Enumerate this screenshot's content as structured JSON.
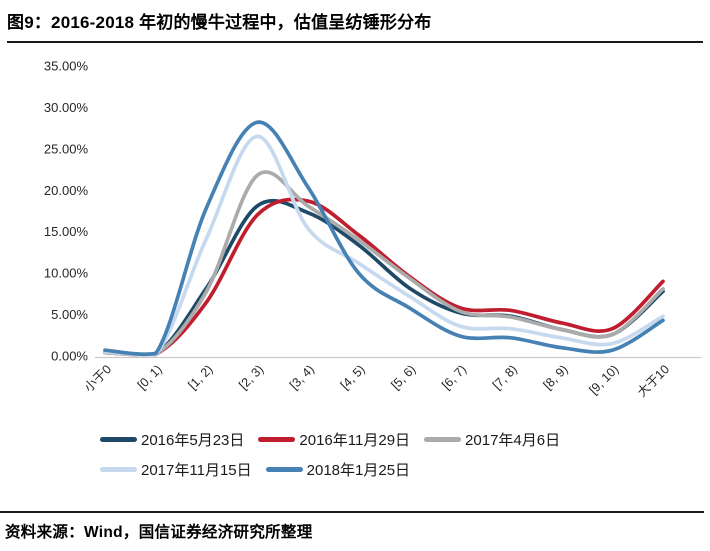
{
  "figure": {
    "title": "图9：2016-2018 年初的慢牛过程中，估值呈纺锤形分布",
    "source_note": "资料来源：Wind，国信证券经济研究所整理"
  },
  "chart_data": {
    "type": "line",
    "title": "",
    "xlabel": "",
    "ylabel": "",
    "ylim": [
      0,
      35
    ],
    "grid": false,
    "legend_position": "bottom",
    "y_ticks": [
      "0.00%",
      "5.00%",
      "10.00%",
      "15.00%",
      "20.00%",
      "25.00%",
      "30.00%",
      "35.00%"
    ],
    "categories": [
      "小于0",
      "[0, 1)",
      "[1, 2)",
      "[2, 3)",
      "[3, 4)",
      "[4, 5)",
      "[5, 6)",
      "[6, 7)",
      "[7, 8)",
      "[8, 9)",
      "[9, 10)",
      "大于10"
    ],
    "values_unit": "percent",
    "series": [
      {
        "name": "2016年5月23日",
        "color": "#1e4a68",
        "values": [
          0.5,
          0.2,
          8.2,
          18.1,
          17.3,
          13.4,
          8.2,
          5.2,
          4.8,
          3.2,
          2.6,
          7.8
        ]
      },
      {
        "name": "2016年11月29日",
        "color": "#c01e2e",
        "values": [
          0.4,
          0.2,
          6.5,
          17.0,
          18.7,
          14.6,
          9.6,
          5.8,
          5.5,
          4.0,
          3.3,
          9.0
        ]
      },
      {
        "name": "2017年4月6日",
        "color": "#ababab",
        "values": [
          0.4,
          0.2,
          7.8,
          21.8,
          18.1,
          14.0,
          9.4,
          5.4,
          4.7,
          3.2,
          2.6,
          8.1
        ]
      },
      {
        "name": "2017年11月15日",
        "color": "#c6d9ef",
        "values": [
          0.5,
          0.2,
          14.2,
          26.5,
          15.4,
          11.2,
          7.2,
          3.6,
          3.3,
          2.2,
          1.5,
          4.8
        ]
      },
      {
        "name": "2018年1月25日",
        "color": "#4681b4",
        "values": [
          0.7,
          0.3,
          17.9,
          28.2,
          20.4,
          10.0,
          5.8,
          2.4,
          2.2,
          1.0,
          0.7,
          4.3
        ]
      }
    ],
    "legend_rows": [
      3,
      2
    ]
  }
}
